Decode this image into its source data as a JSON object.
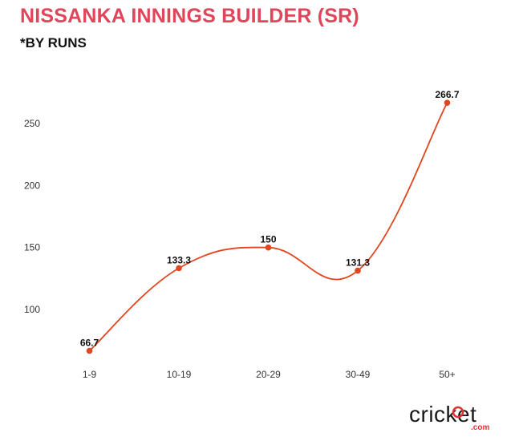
{
  "title": "NISSANKA INNINGS BUILDER (SR)",
  "subtitle": "*BY RUNS",
  "logo": {
    "text": "cricket",
    "sub": ".com"
  },
  "colors": {
    "line": "#e0461f",
    "title": "#e0465a",
    "logo_red": "#e63030"
  },
  "chart_data": {
    "type": "line",
    "categories": [
      "1-9",
      "10-19",
      "20-29",
      "30-49",
      "50+"
    ],
    "values": [
      66.7,
      133.3,
      150,
      131.3,
      266.7
    ],
    "data_labels": [
      "66.7",
      "133.3",
      "150",
      "131.3",
      "266.7"
    ],
    "yticks": [
      100,
      150,
      200,
      250
    ],
    "ylim": [
      40,
      280
    ],
    "grid": false,
    "smooth": true
  }
}
